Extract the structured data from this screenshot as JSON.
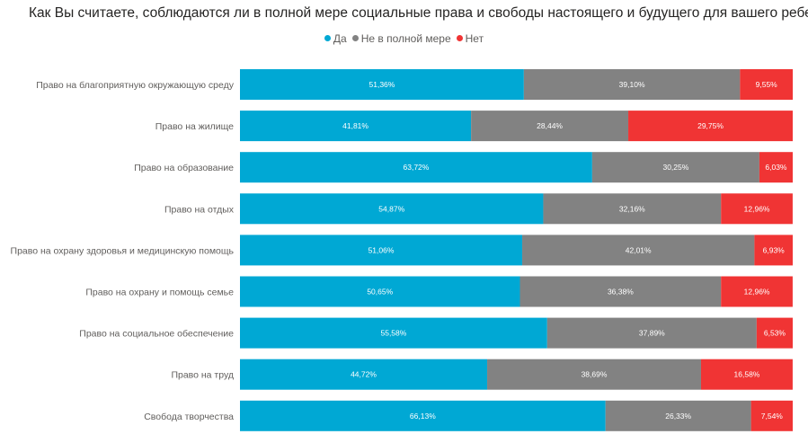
{
  "chart_data": {
    "type": "bar",
    "orientation": "horizontal",
    "stacked": "100%",
    "title": "Как Вы считаете, соблюдаются ли в полной мере социальные права и свободы настоящего и будущего для вашего ребенка?",
    "categories": [
      "Право на благоприятную окружающую среду",
      "Право на жилище",
      "Право на образование",
      "Право на отдых",
      "Право на охрану здоровья и медицинскую помощь",
      "Право на охрану и помощь семье",
      "Право на социальное обеспечение",
      "Право на труд",
      "Свобода творчества"
    ],
    "series": [
      {
        "name": "Да",
        "color": "#00a8d4",
        "values": [
          51.36,
          41.81,
          63.72,
          54.87,
          51.06,
          50.65,
          55.58,
          44.72,
          66.13
        ],
        "labels": [
          "51,36%",
          "41,81%",
          "63,72%",
          "54,87%",
          "51,06%",
          "50,65%",
          "55,58%",
          "44,72%",
          "66,13%"
        ]
      },
      {
        "name": "Не в полной мере",
        "color": "#828282",
        "values": [
          39.1,
          28.44,
          30.25,
          32.16,
          42.01,
          36.38,
          37.89,
          38.69,
          26.33
        ],
        "labels": [
          "39,10%",
          "28,44%",
          "30,25%",
          "32,16%",
          "42,01%",
          "36,38%",
          "37,89%",
          "38,69%",
          "26,33%"
        ]
      },
      {
        "name": "Нет",
        "color": "#f03434",
        "values": [
          9.55,
          29.75,
          6.03,
          12.96,
          6.93,
          12.96,
          6.53,
          16.58,
          7.54
        ],
        "labels": [
          "9,55%",
          "29,75%",
          "6,03%",
          "12,96%",
          "6,93%",
          "12,96%",
          "6,53%",
          "16,58%",
          "7,54%"
        ]
      }
    ],
    "xlim": [
      0,
      100
    ],
    "legend_position": "top-center",
    "grid": false
  }
}
